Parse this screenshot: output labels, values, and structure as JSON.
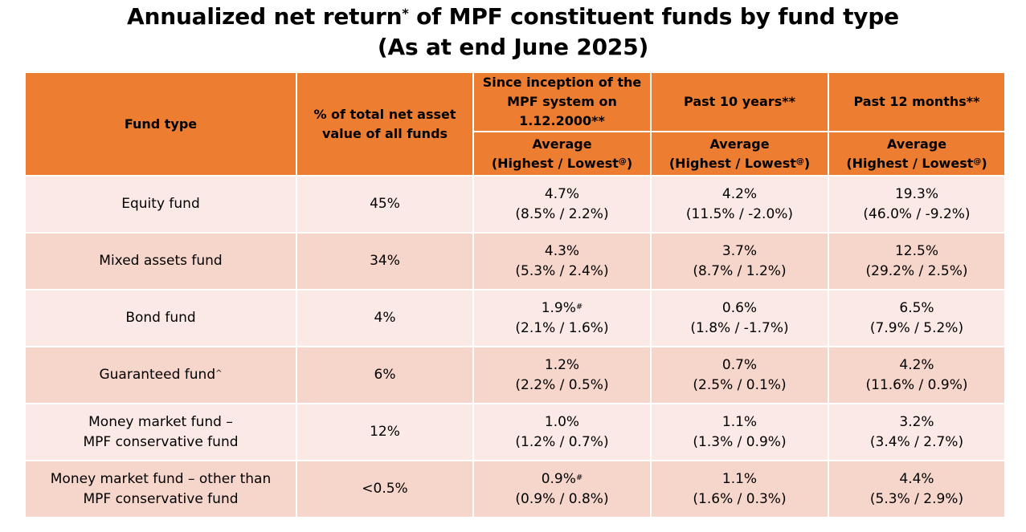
{
  "title": {
    "line1_before": "Annualized net return",
    "line1_sup": "*",
    "line1_after": " of MPF constituent funds by fund type",
    "line2": "(As at end June 2025)"
  },
  "header": {
    "fund_type": "Fund type",
    "pct_nav": "% of total net asset value of all funds",
    "since_inception": "Since inception of the MPF system on 1.12.2000**",
    "past_10": "Past 10 years**",
    "past_12m": "Past 12 months**",
    "avg_label": "Average",
    "hl_label": "(Highest / Lowest",
    "hl_sup": "@",
    "hl_close": ")"
  },
  "rows": [
    {
      "fund": "Equity fund",
      "fund_sup": "",
      "pct": "45%",
      "c1_avg": "4.7%",
      "c1_sup": "",
      "c1_range": "(8.5% / 2.2%)",
      "c2_avg": "4.2%",
      "c2_range": "(11.5% / -2.0%)",
      "c3_avg": "19.3%",
      "c3_range": "(46.0% / -9.2%)"
    },
    {
      "fund": "Mixed assets fund",
      "fund_sup": "",
      "pct": "34%",
      "c1_avg": "4.3%",
      "c1_sup": "",
      "c1_range": "(5.3% / 2.4%)",
      "c2_avg": "3.7%",
      "c2_range": "(8.7% / 1.2%)",
      "c3_avg": "12.5%",
      "c3_range": "(29.2% / 2.5%)"
    },
    {
      "fund": "Bond fund",
      "fund_sup": "",
      "pct": "4%",
      "c1_avg": "1.9%",
      "c1_sup": "#",
      "c1_range": "(2.1% / 1.6%)",
      "c2_avg": "0.6%",
      "c2_range": "(1.8% / -1.7%)",
      "c3_avg": "6.5%",
      "c3_range": "(7.9% / 5.2%)"
    },
    {
      "fund": "Guaranteed fund",
      "fund_sup": "^",
      "pct": "6%",
      "c1_avg": "1.2%",
      "c1_sup": "",
      "c1_range": "(2.2% / 0.5%)",
      "c2_avg": "0.7%",
      "c2_range": "(2.5% / 0.1%)",
      "c3_avg": "4.2%",
      "c3_range": "(11.6% / 0.9%)"
    },
    {
      "fund": "Money market fund –",
      "fund_line2": "MPF conservative fund",
      "fund_sup": "",
      "pct": "12%",
      "c1_avg": "1.0%",
      "c1_sup": "",
      "c1_range": "(1.2% / 0.7%)",
      "c2_avg": "1.1%",
      "c2_range": "(1.3% / 0.9%)",
      "c3_avg": "3.2%",
      "c3_range": "(3.4% / 2.7%)"
    },
    {
      "fund": "Money market fund – other than",
      "fund_line2": "MPF conservative fund",
      "fund_sup": "",
      "pct": "<0.5%",
      "c1_avg": "0.9%",
      "c1_sup": "#",
      "c1_range": "(0.9% / 0.8%)",
      "c2_avg": "1.1%",
      "c2_range": "(1.6% / 0.3%)",
      "c3_avg": "4.4%",
      "c3_range": "(5.3% / 2.9%)"
    }
  ],
  "colors": {
    "header_bg": "#ED7D31",
    "row_light": "#FBE9E5",
    "row_dark": "#F6D5CA"
  }
}
